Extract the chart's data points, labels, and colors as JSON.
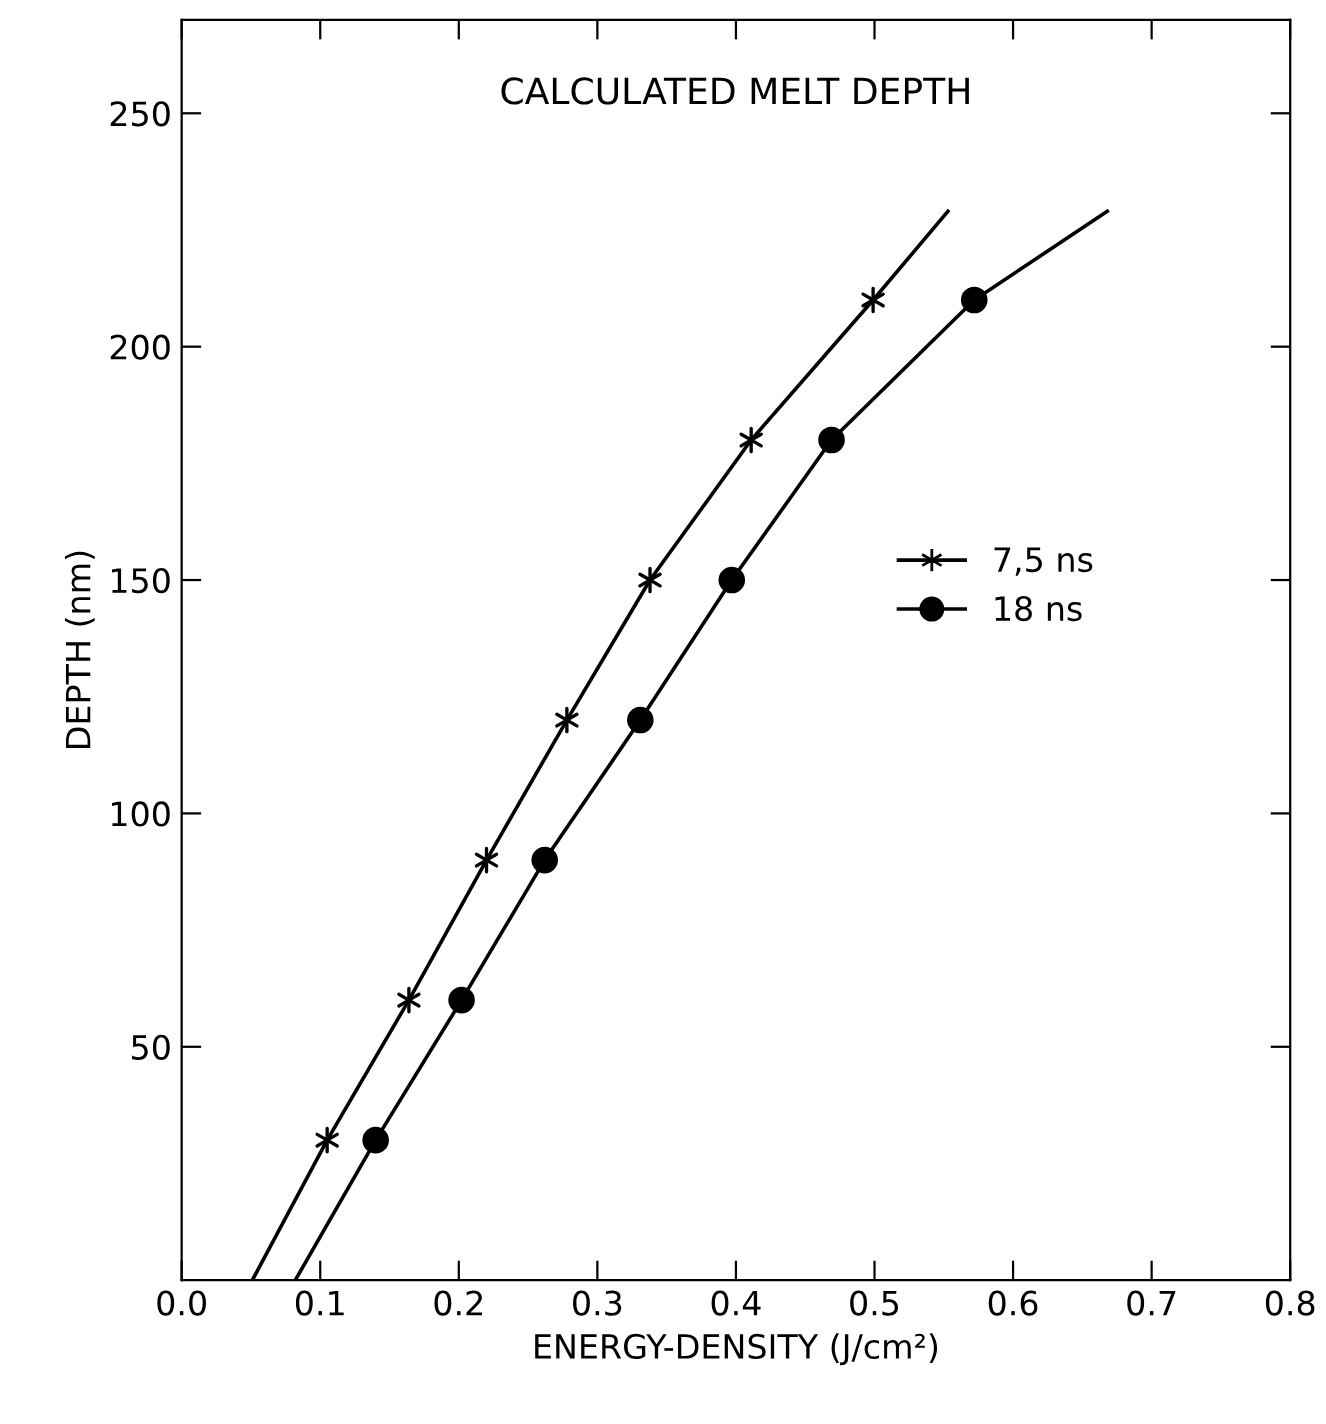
{
  "chart_data": {
    "type": "line",
    "title": "CALCULATED MELT DEPTH",
    "xlabel": "ENERGY-DENSITY (J/cm²)",
    "ylabel": "DEPTH (nm)",
    "series": [
      {
        "color": "#000000",
        "marker": "none",
        "x": [
          0.051,
          0.105,
          0.164,
          0.22,
          0.278,
          0.338,
          0.411,
          0.499,
          0.553
        ],
        "values": [
          0,
          30,
          60,
          90,
          120,
          150,
          180,
          210,
          229
        ]
      },
      {
        "color": "#000000",
        "marker": "none",
        "x": [
          0.082,
          0.14,
          0.202,
          0.262,
          0.331,
          0.397,
          0.469,
          0.572,
          0.668
        ],
        "values": [
          0,
          30,
          60,
          90,
          120,
          150,
          180,
          210,
          229
        ]
      },
      {
        "type": "scatter",
        "name": "7,5 ns",
        "color": "#000000",
        "marker": "cross",
        "x": [
          0.105,
          0.164,
          0.22,
          0.278,
          0.338,
          0.411,
          0.499
        ],
        "values": [
          30,
          60,
          90,
          120,
          150,
          180,
          210
        ]
      },
      {
        "type": "scatter",
        "name": "18 ns",
        "color": "#000000",
        "marker": "circle",
        "x": [
          0.14,
          0.202,
          0.262,
          0.331,
          0.397,
          0.469,
          0.572
        ],
        "values": [
          30,
          60,
          90,
          120,
          150,
          180,
          210
        ]
      }
    ],
    "xlim": [
      0,
      0.8
    ],
    "ylim": [
      0,
      270
    ],
    "xticks": [
      {
        "value": 0,
        "label": "0.0"
      },
      0.1,
      0.2,
      0.3,
      0.4,
      0.5,
      0.6,
      0.7,
      0.8
    ],
    "yticks": [
      50,
      100,
      150,
      200,
      250
    ],
    "legend": "right",
    "grid": false
  }
}
